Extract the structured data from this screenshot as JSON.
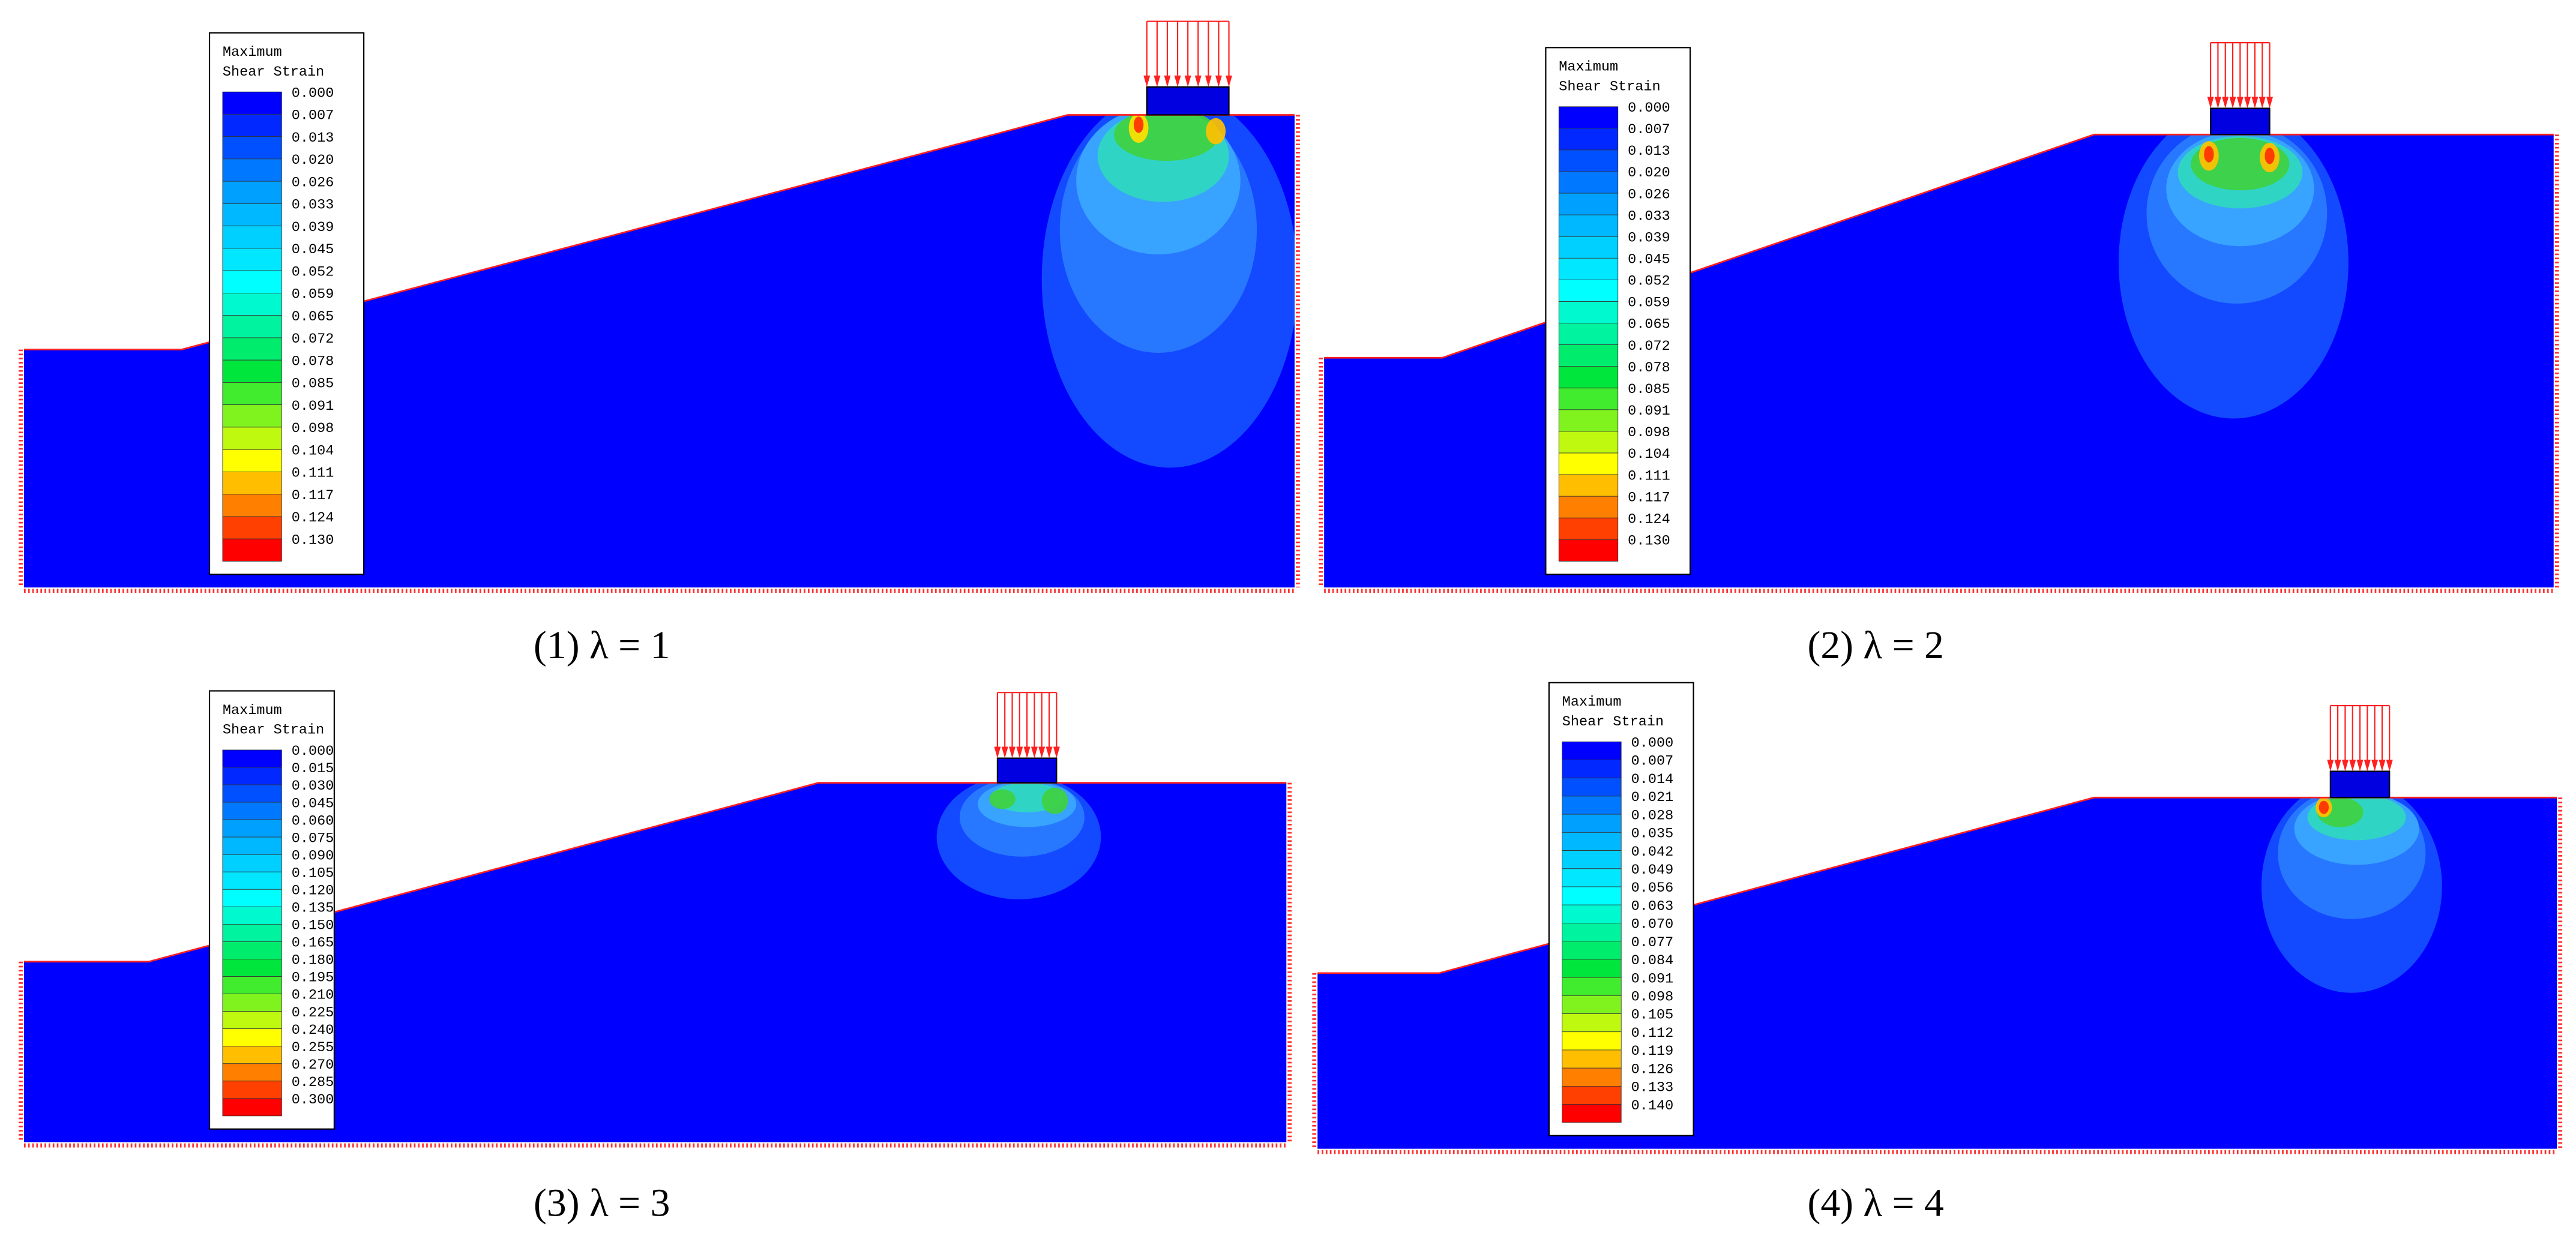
{
  "panels": [
    {
      "legend": {
        "title": [
          "Maximum",
          "Shear Strain"
        ],
        "labels": [
          "0.000",
          "0.007",
          "0.013",
          "0.020",
          "0.026",
          "0.033",
          "0.039",
          "0.045",
          "0.052",
          "0.059",
          "0.065",
          "0.072",
          "0.078",
          "0.085",
          "0.091",
          "0.098",
          "0.104",
          "0.111",
          "0.117",
          "0.124",
          "0.130"
        ]
      },
      "caption": "(1) λ = 1"
    },
    {
      "legend": {
        "title": [
          "Maximum",
          "Shear Strain"
        ],
        "labels": [
          "0.000",
          "0.007",
          "0.013",
          "0.020",
          "0.026",
          "0.033",
          "0.039",
          "0.045",
          "0.052",
          "0.059",
          "0.065",
          "0.072",
          "0.078",
          "0.085",
          "0.091",
          "0.098",
          "0.104",
          "0.111",
          "0.117",
          "0.124",
          "0.130"
        ]
      },
      "caption": "(2) λ = 2"
    },
    {
      "legend": {
        "title": [
          "Maximum",
          "Shear Strain"
        ],
        "labels": [
          "0.000",
          "0.015",
          "0.030",
          "0.045",
          "0.060",
          "0.075",
          "0.090",
          "0.105",
          "0.120",
          "0.135",
          "0.150",
          "0.165",
          "0.180",
          "0.195",
          "0.210",
          "0.225",
          "0.240",
          "0.255",
          "0.270",
          "0.285",
          "0.300"
        ]
      },
      "caption": "(3) λ = 3"
    },
    {
      "legend": {
        "title": [
          "Maximum",
          "Shear Strain"
        ],
        "labels": [
          "0.000",
          "0.007",
          "0.014",
          "0.021",
          "0.028",
          "0.035",
          "0.042",
          "0.049",
          "0.056",
          "0.063",
          "0.070",
          "0.077",
          "0.084",
          "0.091",
          "0.098",
          "0.105",
          "0.112",
          "0.119",
          "0.126",
          "0.133",
          "0.140"
        ]
      },
      "caption": "(4) λ = 4"
    }
  ]
}
